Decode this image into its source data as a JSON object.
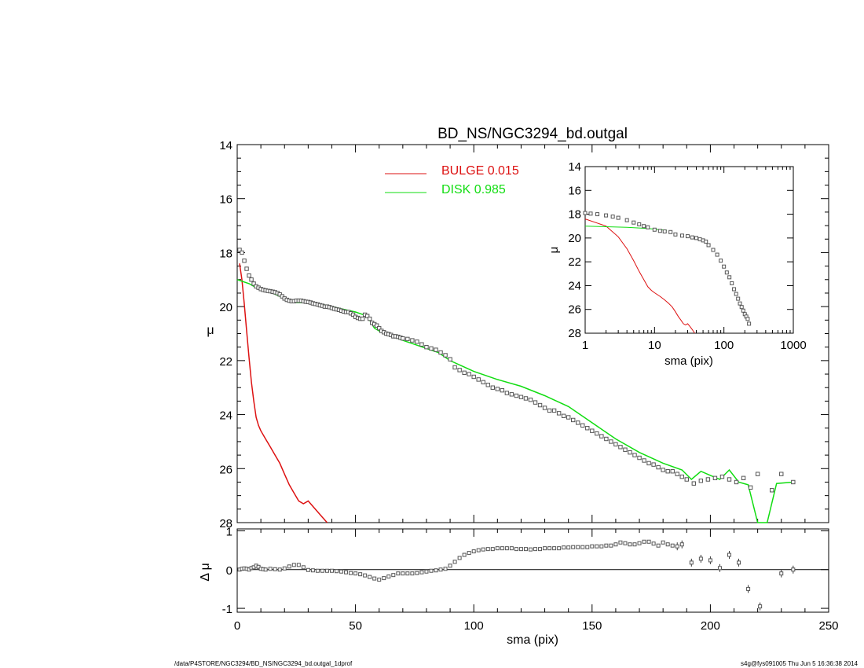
{
  "chart_data": [
    {
      "panel": "main",
      "type": "scatter",
      "title": "BD_NS/NGC3294_bd.outgal",
      "xlabel": "",
      "ylabel": "μ",
      "xlim": [
        0,
        250
      ],
      "ylim": [
        28,
        14
      ],
      "y_inverted": true,
      "yticks": [
        "14",
        "16",
        "18",
        "20",
        "22",
        "24",
        "26",
        "28"
      ],
      "legend": [
        {
          "label": "BULGE  0.015",
          "color": "#dd1111"
        },
        {
          "label": "DISK  0.985",
          "color": "#11dd11"
        }
      ],
      "legend_position": "top-center",
      "series": [
        {
          "name": "BULGE  0.015",
          "kind": "line",
          "color": "#dd1111",
          "x": [
            1,
            2,
            3,
            4,
            5,
            6,
            7,
            8,
            9,
            10,
            12,
            14,
            16,
            18,
            20,
            22,
            24,
            26,
            28,
            30,
            32,
            34,
            36,
            38
          ],
          "y": [
            18.4,
            19.0,
            19.9,
            20.9,
            21.9,
            22.8,
            23.5,
            24.1,
            24.4,
            24.6,
            24.9,
            25.2,
            25.5,
            25.8,
            26.2,
            26.6,
            26.9,
            27.2,
            27.3,
            27.2,
            27.4,
            27.6,
            27.8,
            28.0
          ]
        },
        {
          "name": "DISK  0.985",
          "kind": "line",
          "color": "#11dd11",
          "x": [
            0,
            5,
            10,
            15,
            20,
            25,
            30,
            35,
            40,
            45,
            50,
            55,
            58,
            62,
            66,
            70,
            75,
            80,
            85,
            90,
            95,
            100,
            110,
            120,
            130,
            140,
            150,
            155,
            160,
            170,
            180,
            188,
            192,
            196,
            200,
            204,
            208,
            212,
            216,
            220,
            224,
            228,
            235
          ],
          "y": [
            19.0,
            19.15,
            19.4,
            19.5,
            19.7,
            19.85,
            19.85,
            19.9,
            20.0,
            20.1,
            20.2,
            20.35,
            20.8,
            21.0,
            21.1,
            21.25,
            21.4,
            21.55,
            21.7,
            22.0,
            22.2,
            22.4,
            22.7,
            22.95,
            23.3,
            23.7,
            24.3,
            24.6,
            24.9,
            25.4,
            25.8,
            26.05,
            26.4,
            26.1,
            26.25,
            26.4,
            26.05,
            26.5,
            26.6,
            28.0,
            28.0,
            26.55,
            26.5
          ]
        },
        {
          "name": "",
          "kind": "points",
          "color": "#555555",
          "x": [
            1,
            2,
            3,
            4,
            5,
            6,
            7,
            8,
            9,
            10,
            11,
            12,
            13,
            14,
            15,
            16,
            17,
            18,
            19,
            20,
            21,
            22,
            23,
            24,
            25,
            26,
            27,
            28,
            29,
            30,
            31,
            32,
            33,
            34,
            35,
            36,
            37,
            38,
            39,
            40,
            41,
            42,
            43,
            44,
            45,
            46,
            47,
            48,
            49,
            50,
            51,
            52,
            53,
            54,
            55,
            56,
            57,
            58,
            59,
            60,
            61,
            62,
            63,
            64,
            65,
            66,
            67,
            68,
            69,
            70,
            72,
            74,
            76,
            78,
            80,
            82,
            84,
            86,
            88,
            90,
            92,
            94,
            96,
            98,
            100,
            102,
            104,
            106,
            108,
            110,
            112,
            114,
            116,
            118,
            120,
            122,
            124,
            126,
            128,
            130,
            132,
            134,
            136,
            138,
            140,
            142,
            144,
            146,
            148,
            150,
            152,
            154,
            156,
            158,
            160,
            162,
            164,
            166,
            168,
            170,
            172,
            174,
            176,
            178,
            180,
            182,
            184,
            186,
            188,
            190,
            193,
            196,
            199,
            202,
            205,
            208,
            211,
            214,
            217,
            220,
            226,
            230,
            235
          ],
          "y": [
            17.9,
            18.0,
            18.3,
            18.6,
            18.85,
            19.0,
            19.15,
            19.25,
            19.3,
            19.35,
            19.38,
            19.4,
            19.42,
            19.43,
            19.45,
            19.47,
            19.5,
            19.55,
            19.62,
            19.7,
            19.75,
            19.78,
            19.8,
            19.8,
            19.78,
            19.78,
            19.78,
            19.8,
            19.82,
            19.83,
            19.85,
            19.88,
            19.9,
            19.92,
            19.95,
            19.97,
            20.0,
            20.0,
            20.02,
            20.05,
            20.08,
            20.1,
            20.12,
            20.15,
            20.18,
            20.2,
            20.2,
            20.25,
            20.3,
            20.38,
            20.42,
            20.45,
            20.45,
            20.3,
            20.35,
            20.45,
            20.6,
            20.65,
            20.7,
            20.8,
            20.9,
            20.95,
            21.0,
            21.02,
            21.05,
            21.1,
            21.1,
            21.12,
            21.15,
            21.18,
            21.2,
            21.25,
            21.3,
            21.4,
            21.5,
            21.55,
            21.6,
            21.7,
            21.8,
            21.95,
            22.25,
            22.35,
            22.45,
            22.5,
            22.6,
            22.7,
            22.8,
            22.9,
            23.0,
            23.05,
            23.1,
            23.2,
            23.25,
            23.3,
            23.35,
            23.4,
            23.45,
            23.55,
            23.65,
            23.75,
            23.85,
            23.85,
            23.95,
            24.05,
            24.1,
            24.2,
            24.3,
            24.4,
            24.5,
            24.6,
            24.7,
            24.8,
            24.9,
            25.0,
            25.1,
            25.2,
            25.3,
            25.4,
            25.5,
            25.6,
            25.7,
            25.8,
            25.85,
            25.95,
            26.05,
            26.1,
            26.1,
            26.2,
            26.3,
            26.4,
            26.55,
            26.45,
            26.4,
            26.35,
            26.3,
            26.4,
            26.5,
            26.35,
            26.7,
            26.2,
            26.8,
            26.2,
            26.5
          ]
        }
      ]
    },
    {
      "panel": "residual",
      "type": "scatter",
      "xlabel": "sma (pix)",
      "ylabel": "Δ μ",
      "xlim": [
        0,
        250
      ],
      "ylim": [
        -1.1,
        1.05
      ],
      "xticks": [
        "0",
        "50",
        "100",
        "150",
        "200",
        "250"
      ],
      "yticks": [
        "1",
        "0",
        "-1"
      ],
      "series": [
        {
          "name": "",
          "kind": "points",
          "color": "#555555",
          "x": [
            1,
            2,
            3,
            4,
            5,
            6,
            7,
            8,
            9,
            10,
            11,
            12,
            14,
            16,
            18,
            20,
            22,
            24,
            26,
            28,
            30,
            32,
            34,
            36,
            38,
            40,
            42,
            44,
            46,
            48,
            50,
            52,
            54,
            56,
            58,
            60,
            62,
            64,
            66,
            68,
            70,
            72,
            74,
            76,
            78,
            80,
            82,
            84,
            86,
            88,
            90,
            92,
            94,
            96,
            98,
            100,
            102,
            104,
            106,
            108,
            110,
            112,
            114,
            116,
            118,
            120,
            122,
            124,
            126,
            128,
            130,
            132,
            134,
            136,
            138,
            140,
            142,
            144,
            146,
            148,
            150,
            152,
            154,
            156,
            158,
            160,
            162,
            164,
            166,
            168,
            170,
            172,
            174,
            176,
            178,
            180,
            182,
            184,
            186,
            188,
            192,
            196,
            200,
            204,
            208,
            212,
            216,
            221,
            230,
            235
          ],
          "y": [
            0.0,
            0.02,
            0.03,
            0.02,
            0.0,
            0.04,
            0.06,
            0.1,
            0.07,
            0.02,
            0.01,
            0.0,
            0.02,
            0.01,
            0.0,
            0.03,
            0.08,
            0.12,
            0.12,
            0.06,
            -0.01,
            -0.02,
            -0.03,
            -0.03,
            -0.03,
            -0.03,
            -0.04,
            -0.05,
            -0.07,
            -0.09,
            -0.1,
            -0.12,
            -0.15,
            -0.19,
            -0.23,
            -0.26,
            -0.22,
            -0.18,
            -0.14,
            -0.1,
            -0.1,
            -0.1,
            -0.1,
            -0.09,
            -0.07,
            -0.05,
            -0.03,
            -0.02,
            0.0,
            0.02,
            0.1,
            0.2,
            0.3,
            0.38,
            0.43,
            0.47,
            0.5,
            0.52,
            0.53,
            0.53,
            0.55,
            0.55,
            0.55,
            0.55,
            0.53,
            0.53,
            0.53,
            0.52,
            0.53,
            0.53,
            0.55,
            0.55,
            0.55,
            0.55,
            0.57,
            0.57,
            0.58,
            0.58,
            0.58,
            0.58,
            0.6,
            0.6,
            0.6,
            0.62,
            0.62,
            0.65,
            0.7,
            0.68,
            0.65,
            0.65,
            0.68,
            0.72,
            0.72,
            0.67,
            0.62,
            0.7,
            0.65,
            0.62,
            0.6,
            0.65,
            0.18,
            0.28,
            0.24,
            0.04,
            0.38,
            0.18,
            -0.5,
            -0.95,
            -0.1,
            0.0
          ]
        }
      ]
    },
    {
      "panel": "inset",
      "type": "scatter",
      "xlabel": "sma (pix)",
      "ylabel": "μ",
      "xscale": "log",
      "xlim": [
        1,
        1000
      ],
      "ylim": [
        28,
        14
      ],
      "y_inverted": true,
      "xticks": [
        "1",
        "10",
        "100",
        "1000"
      ],
      "yticks": [
        "14",
        "16",
        "18",
        "20",
        "22",
        "24",
        "26",
        "28"
      ],
      "series": [
        {
          "name": "BULGE  0.015",
          "kind": "line",
          "color": "#dd1111",
          "x": [
            1,
            2,
            3,
            4,
            5,
            6,
            7,
            8,
            9,
            10,
            12,
            14,
            16,
            18,
            20,
            22,
            24,
            26,
            28,
            30,
            32,
            34,
            36,
            38
          ],
          "y": [
            18.4,
            19.0,
            19.9,
            20.9,
            21.9,
            22.8,
            23.5,
            24.1,
            24.4,
            24.6,
            24.9,
            25.2,
            25.5,
            25.8,
            26.2,
            26.6,
            26.9,
            27.2,
            27.3,
            27.2,
            27.4,
            27.6,
            27.8,
            28.0
          ]
        },
        {
          "name": "DISK  0.985",
          "kind": "line",
          "color": "#11dd11",
          "x": [
            1,
            2,
            4,
            8,
            15
          ],
          "y": [
            19.0,
            19.05,
            19.1,
            19.2,
            19.35
          ]
        },
        {
          "name": "",
          "kind": "points",
          "color": "#555555",
          "x": [
            1,
            1.2,
            1.5,
            2,
            2.5,
            3,
            4,
            5,
            6,
            7,
            8,
            10,
            12,
            14,
            17,
            20,
            25,
            30,
            35,
            40,
            45,
            50,
            55,
            60,
            70,
            80,
            90,
            100,
            110,
            120,
            130,
            140,
            150,
            160,
            170,
            180,
            190,
            200,
            210,
            220,
            230
          ],
          "y": [
            17.9,
            17.95,
            18.0,
            18.1,
            18.2,
            18.3,
            18.5,
            18.7,
            18.85,
            19.0,
            19.1,
            19.3,
            19.4,
            19.45,
            19.5,
            19.7,
            19.8,
            19.85,
            19.95,
            20.0,
            20.1,
            20.2,
            20.3,
            20.6,
            21.0,
            21.4,
            21.9,
            22.4,
            22.9,
            23.3,
            23.8,
            24.3,
            24.7,
            25.1,
            25.5,
            25.8,
            26.1,
            26.4,
            26.6,
            26.8,
            27.2
          ]
        }
      ]
    }
  ],
  "footer": {
    "left": "/data/P4STORE/NGC3294/BD_NS/NGC3294_bd.outgal_1dprof",
    "right": "s4g@fys091005  Thu Jun  5 16:36:38 2014"
  }
}
